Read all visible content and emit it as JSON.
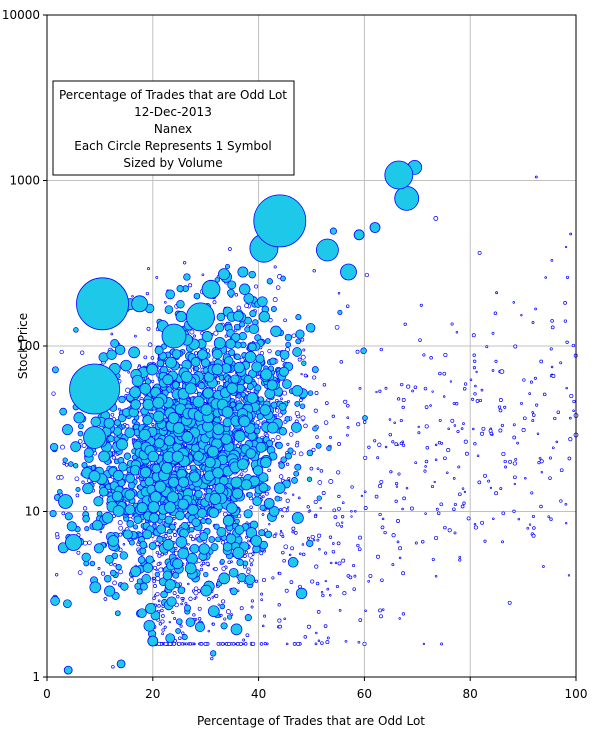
{
  "chart_data": {
    "type": "scatter",
    "title_box": [
      "Percentage of Trades that are Odd Lot",
      "12-Dec-2013",
      "Nanex",
      "Each Circle Represents 1 Symbol",
      "Sized by Volume"
    ],
    "xlabel": "Percentage of Trades that are Odd Lot",
    "ylabel": "Stock Price",
    "xlim": [
      0,
      100
    ],
    "ylim": [
      1,
      10000
    ],
    "y_scale": "log",
    "x_ticks": [
      "0",
      "20",
      "40",
      "60",
      "80",
      "100"
    ],
    "y_ticks": [
      "1",
      "10",
      "100",
      "1000",
      "10000"
    ],
    "grid": true,
    "marker_fill": "#1ec8e8",
    "marker_stroke": "#0000ff",
    "small_marker_fill": "#ffffff",
    "notable_points": [
      {
        "x": 44,
        "y": 570,
        "size": 26
      },
      {
        "x": 10.5,
        "y": 180,
        "size": 26
      },
      {
        "x": 9,
        "y": 55,
        "size": 25
      },
      {
        "x": 66.5,
        "y": 1080,
        "size": 14
      },
      {
        "x": 68,
        "y": 780,
        "size": 12
      },
      {
        "x": 69.5,
        "y": 1200,
        "size": 7
      },
      {
        "x": 41,
        "y": 390,
        "size": 14
      },
      {
        "x": 53,
        "y": 380,
        "size": 11
      },
      {
        "x": 29,
        "y": 150,
        "size": 14
      },
      {
        "x": 24,
        "y": 115,
        "size": 12
      },
      {
        "x": 31,
        "y": 220,
        "size": 9
      },
      {
        "x": 57,
        "y": 280,
        "size": 8
      },
      {
        "x": 17.5,
        "y": 180,
        "size": 8
      },
      {
        "x": 59,
        "y": 470,
        "size": 5
      },
      {
        "x": 62,
        "y": 520,
        "size": 5
      },
      {
        "x": 9,
        "y": 28,
        "size": 11
      },
      {
        "x": 5,
        "y": 6.5,
        "size": 8
      },
      {
        "x": 3.5,
        "y": 11.5,
        "size": 7
      },
      {
        "x": 20,
        "y": 1.65,
        "size": 5
      },
      {
        "x": 42,
        "y": 11.2,
        "size": 5
      },
      {
        "x": 14,
        "y": 1.2,
        "size": 4
      },
      {
        "x": 4,
        "y": 1.1,
        "size": 4
      },
      {
        "x": 92.5,
        "y": 1050,
        "size": 1
      },
      {
        "x": 99,
        "y": 475,
        "size": 1
      },
      {
        "x": 100,
        "y": 38,
        "size": 2
      },
      {
        "x": 100,
        "y": 29,
        "size": 2
      },
      {
        "x": 86,
        "y": 70,
        "size": 2
      },
      {
        "x": 85,
        "y": 210,
        "size": 1
      },
      {
        "x": 73.5,
        "y": 590,
        "size": 2
      }
    ],
    "cloud": {
      "count": 2600,
      "x_center_base": 30,
      "x_center_slope": -0.14,
      "x_spread": 10,
      "y_log_center": 1.4,
      "y_log_spread": 0.42,
      "big_region_x": [
        2,
        50
      ],
      "sparse_tail_count": 700,
      "sparse_tail_x": [
        20,
        100
      ],
      "sparse_tail_y_log": [
        0.2,
        2.6
      ]
    }
  }
}
